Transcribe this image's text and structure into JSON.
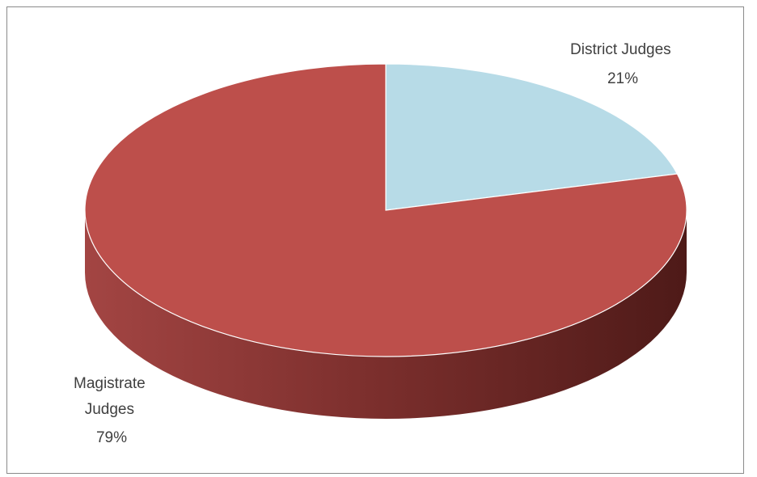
{
  "chart_data": {
    "type": "pie",
    "title": "",
    "style": "3d-tilted",
    "start": "12 o'clock",
    "direction": "clockwise",
    "grid": false,
    "legend": "none",
    "slices": [
      {
        "name": "District Judges",
        "label_lines": [
          "District Judges",
          "21%"
        ],
        "value": 21,
        "color": "#b7dbe7",
        "side_color": "#8db6c2"
      },
      {
        "name": "Magistrate Judges",
        "label_lines": [
          "Magistrate",
          "Judges",
          "79%"
        ],
        "value": 79,
        "color": "#bd4f4b",
        "side_color": "#7a2f2d"
      }
    ]
  }
}
